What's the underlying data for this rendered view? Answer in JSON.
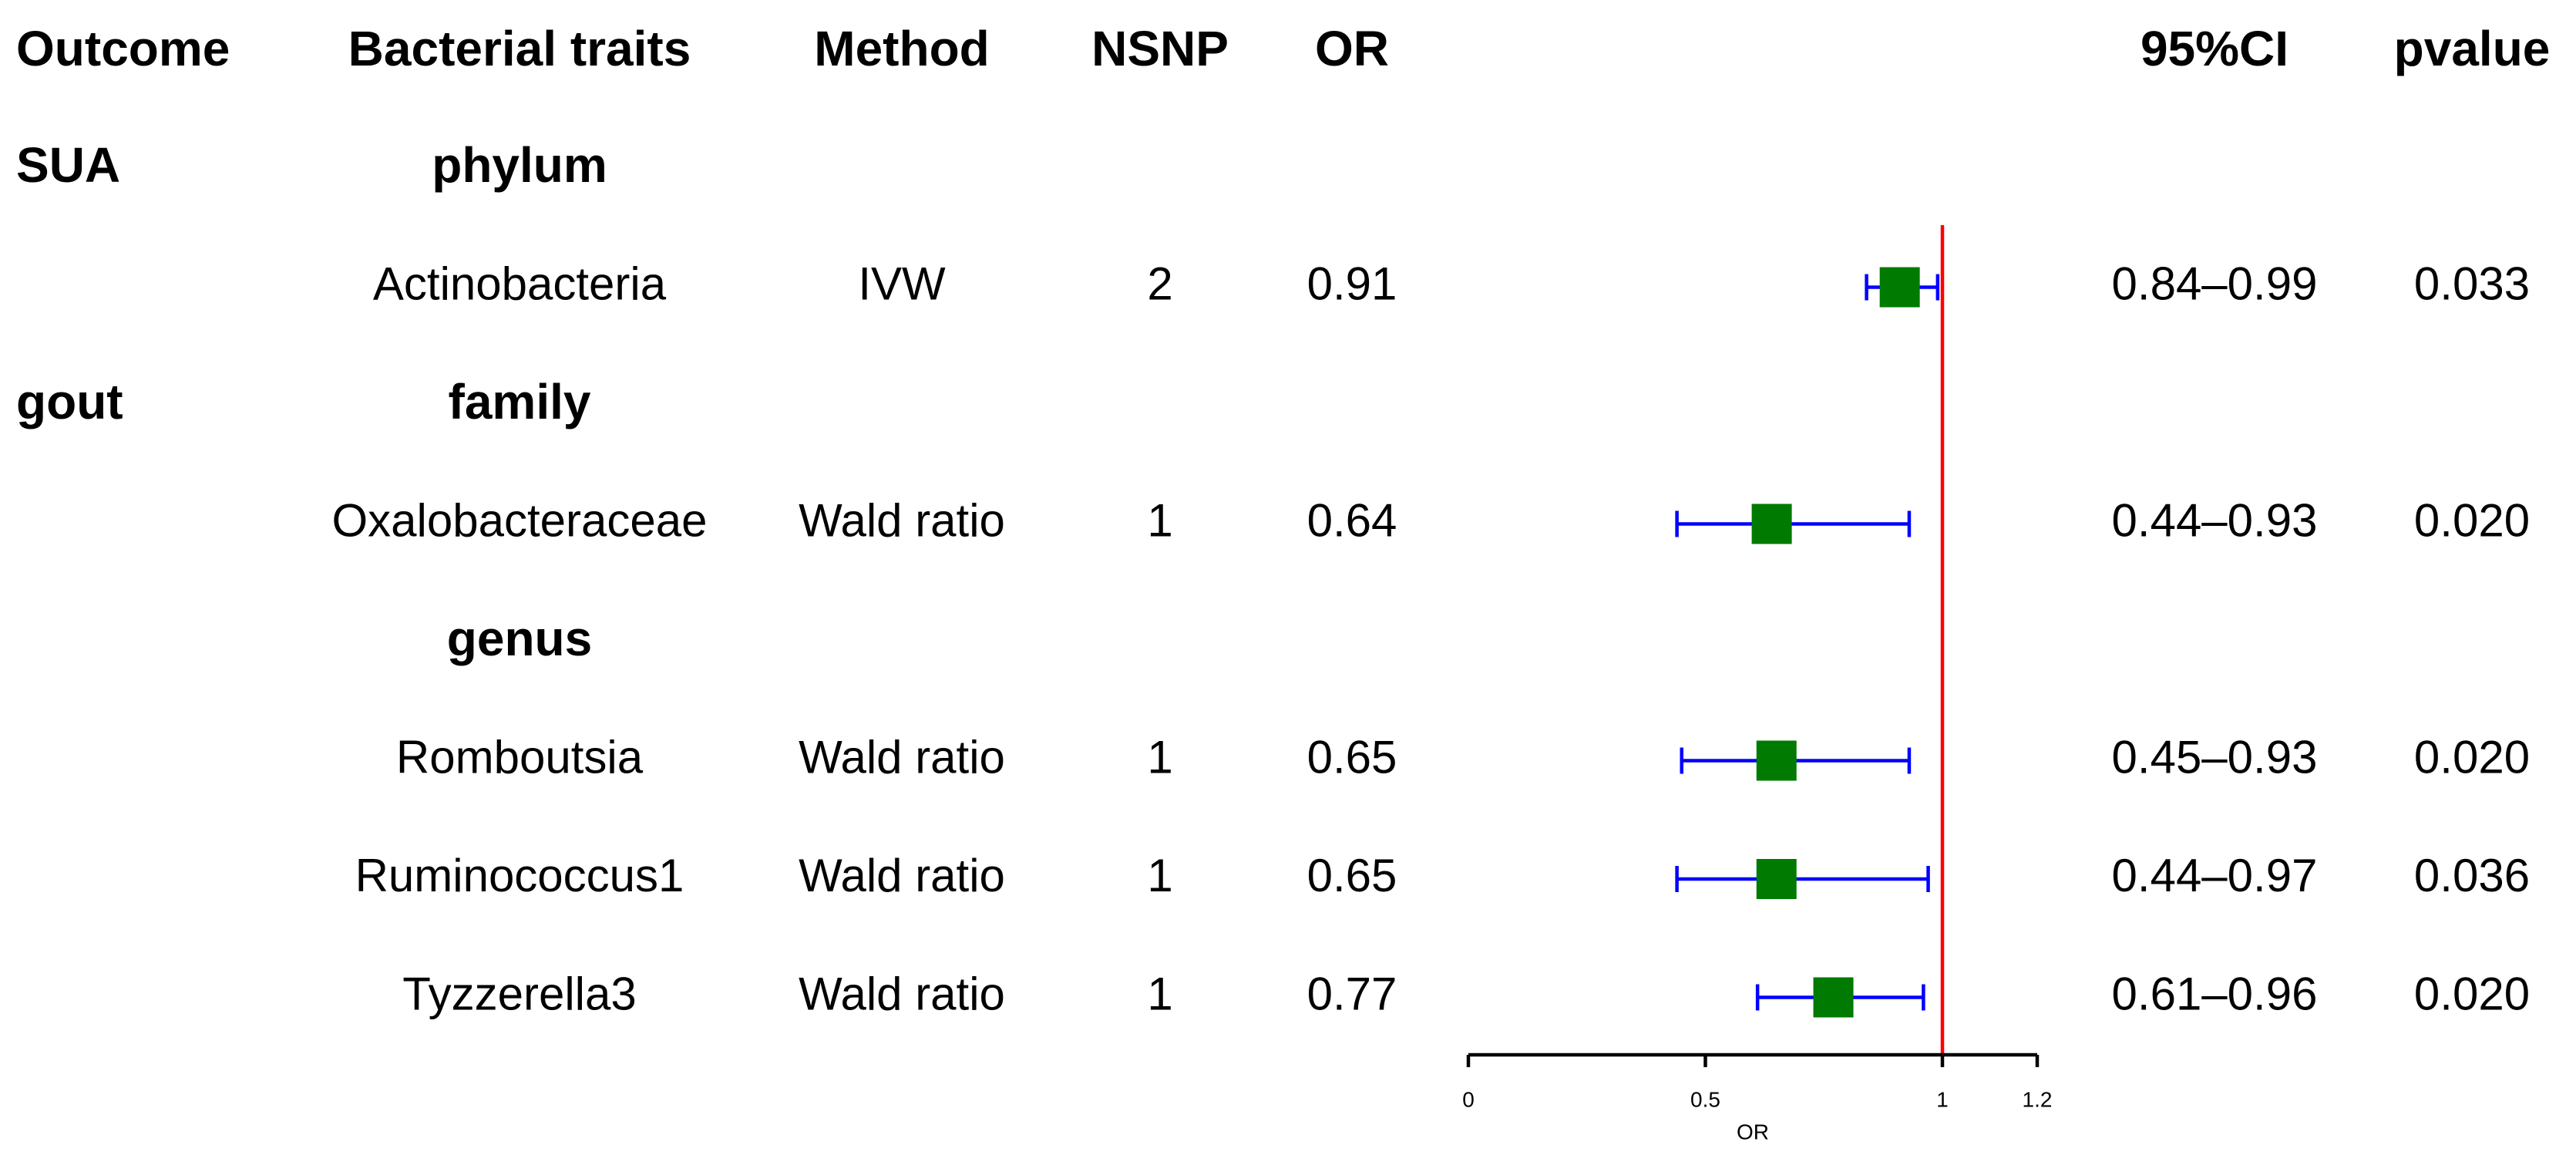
{
  "chart_data": {
    "type": "forest",
    "columns": [
      "Outcome",
      "Bacterial traits",
      "Method",
      "NSNP",
      "OR",
      "95%CI",
      "pvalue"
    ],
    "rows": [
      {
        "outcome": "SUA",
        "group": "phylum"
      },
      {
        "trait": "Actinobacteria",
        "method": "IVW",
        "nsnp": 2,
        "or": 0.91,
        "lower": 0.84,
        "upper": 0.99,
        "ci": "0.84–0.99",
        "pvalue": "0.033"
      },
      {
        "outcome": "gout",
        "group": "family"
      },
      {
        "trait": "Oxalobacteraceae",
        "method": "Wald ratio",
        "nsnp": 1,
        "or": 0.64,
        "lower": 0.44,
        "upper": 0.93,
        "ci": "0.44–0.93",
        "pvalue": "0.020"
      },
      {
        "group": "genus"
      },
      {
        "trait": "Romboutsia",
        "method": "Wald ratio",
        "nsnp": 1,
        "or": 0.65,
        "lower": 0.45,
        "upper": 0.93,
        "ci": "0.45–0.93",
        "pvalue": "0.020"
      },
      {
        "trait": "Ruminococcus1",
        "method": "Wald ratio",
        "nsnp": 1,
        "or": 0.65,
        "lower": 0.44,
        "upper": 0.97,
        "ci": "0.44–0.97",
        "pvalue": "0.036"
      },
      {
        "trait": "Tyzzerella3",
        "method": "Wald ratio",
        "nsnp": 1,
        "or": 0.77,
        "lower": 0.61,
        "upper": 0.96,
        "ci": "0.61–0.96",
        "pvalue": "0.020"
      }
    ],
    "xlabel": "OR",
    "xlim": [
      0,
      1.2
    ],
    "xticks": [
      0,
      0.5,
      1,
      1.2
    ],
    "ref_line": 1,
    "point_color": "#007a00",
    "ci_color": "#0000ff",
    "ref_color": "#ff0000"
  }
}
